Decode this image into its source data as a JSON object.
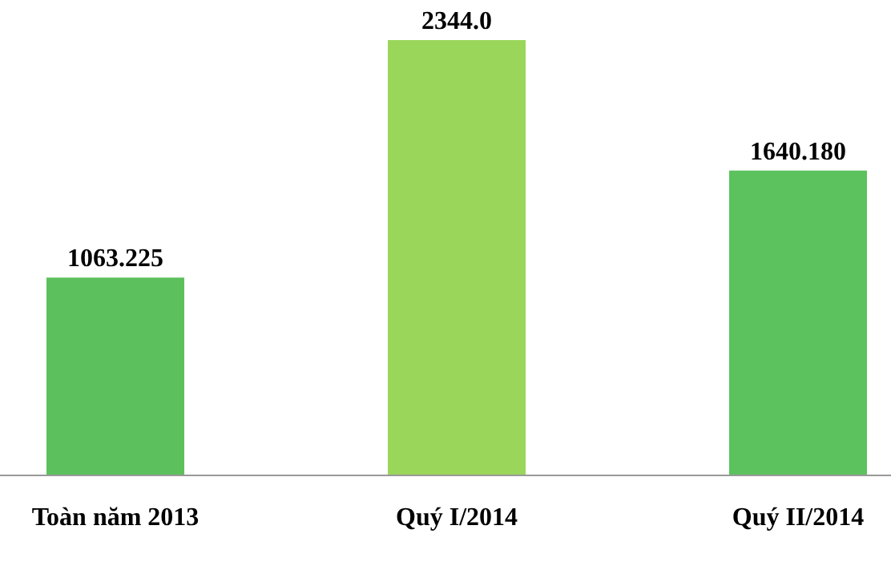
{
  "chart_data": {
    "type": "bar",
    "categories": [
      "Toàn năm 2013",
      "Quý I/2014",
      "Quý II/2014"
    ],
    "values": [
      1063.225,
      2344.0,
      1640.18
    ],
    "value_labels": [
      "1063.225",
      "2344.0",
      "1640.180"
    ],
    "colors": [
      "#5cc05c",
      "#9ad65a",
      "#5cc25e"
    ],
    "ylim": [
      0,
      2344.0
    ]
  }
}
